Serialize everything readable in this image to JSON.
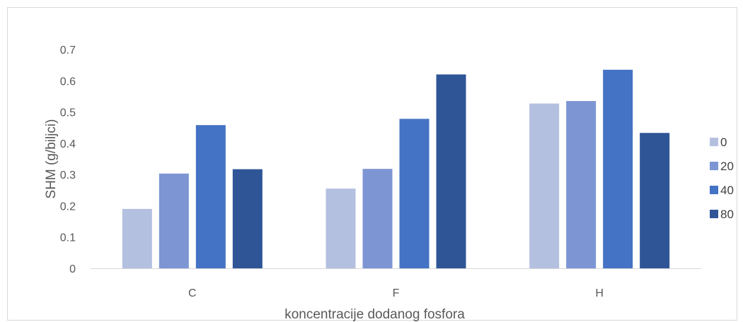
{
  "chart_data": {
    "type": "bar",
    "title": "",
    "xlabel": "koncentracije dodanog fosfora",
    "ylabel": "SHM (g/biljci)",
    "categories": [
      "C",
      "F",
      "H"
    ],
    "yticks": [
      "0",
      "0.1",
      "0.2",
      "0.3",
      "0.4",
      "0.5",
      "0.6",
      "0.7"
    ],
    "ylim": [
      0,
      0.7
    ],
    "grid": false,
    "legend_position": "right",
    "series": [
      {
        "name": "0",
        "color": "#b4c0e0",
        "values": [
          0.19,
          0.255,
          0.527
        ]
      },
      {
        "name": "20",
        "color": "#7d95d3",
        "values": [
          0.303,
          0.318,
          0.535
        ]
      },
      {
        "name": "40",
        "color": "#4472c4",
        "values": [
          0.458,
          0.478,
          0.635
        ]
      },
      {
        "name": "80",
        "color": "#2f5597",
        "values": [
          0.317,
          0.62,
          0.433
        ]
      }
    ]
  }
}
